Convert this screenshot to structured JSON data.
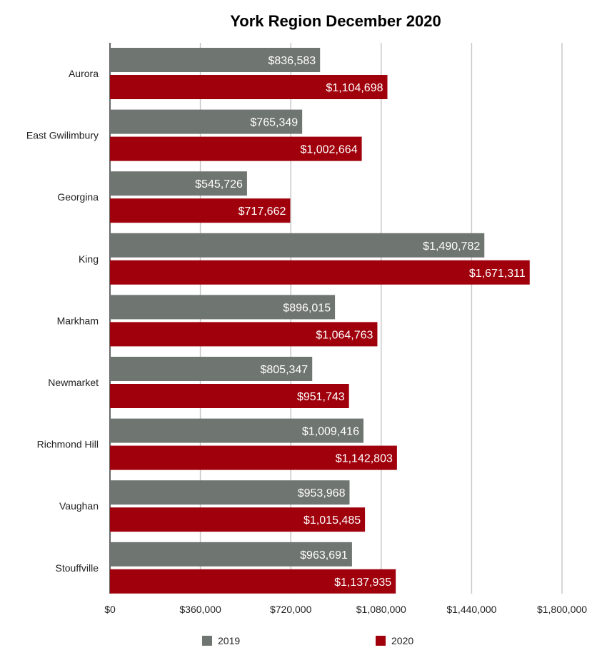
{
  "chart_data": {
    "type": "bar",
    "orientation": "horizontal",
    "title": "York Region December 2020",
    "xlabel": "",
    "ylabel": "",
    "categories": [
      "Aurora",
      "East Gwilimbury",
      "Georgina",
      "King",
      "Markham",
      "Newmarket",
      "Richmond Hill",
      "Vaughan",
      "Stouffville"
    ],
    "series": [
      {
        "name": "2019",
        "color": "#6f7571",
        "values": [
          836583,
          765349,
          545726,
          1490782,
          896015,
          805347,
          1009416,
          953968,
          963691
        ],
        "labels": [
          "$836,583",
          "$765,349",
          "$545,726",
          "$1,490,782",
          "$896,015",
          "$805,347",
          "$1,009,416",
          "$953,968",
          "$963,691"
        ]
      },
      {
        "name": "2020",
        "color": "#a0000b",
        "values": [
          1104698,
          1002664,
          717662,
          1671311,
          1064763,
          951743,
          1142803,
          1015485,
          1137935
        ],
        "labels": [
          "$1,104,698",
          "$1,002,664",
          "$717,662",
          "$1,671,311",
          "$1,064,763",
          "$951,743",
          "$1,142,803",
          "$1,015,485",
          "$1,137,935"
        ]
      }
    ],
    "xlim": [
      0,
      1800000
    ],
    "ticks": [
      0,
      360000,
      720000,
      1080000,
      1440000,
      1800000
    ],
    "tick_labels": [
      "$0",
      "$360,000",
      "$720,000",
      "$1,080,000",
      "$1,440,000",
      "$1,800,000"
    ],
    "grid": true,
    "legend_position": "bottom"
  }
}
